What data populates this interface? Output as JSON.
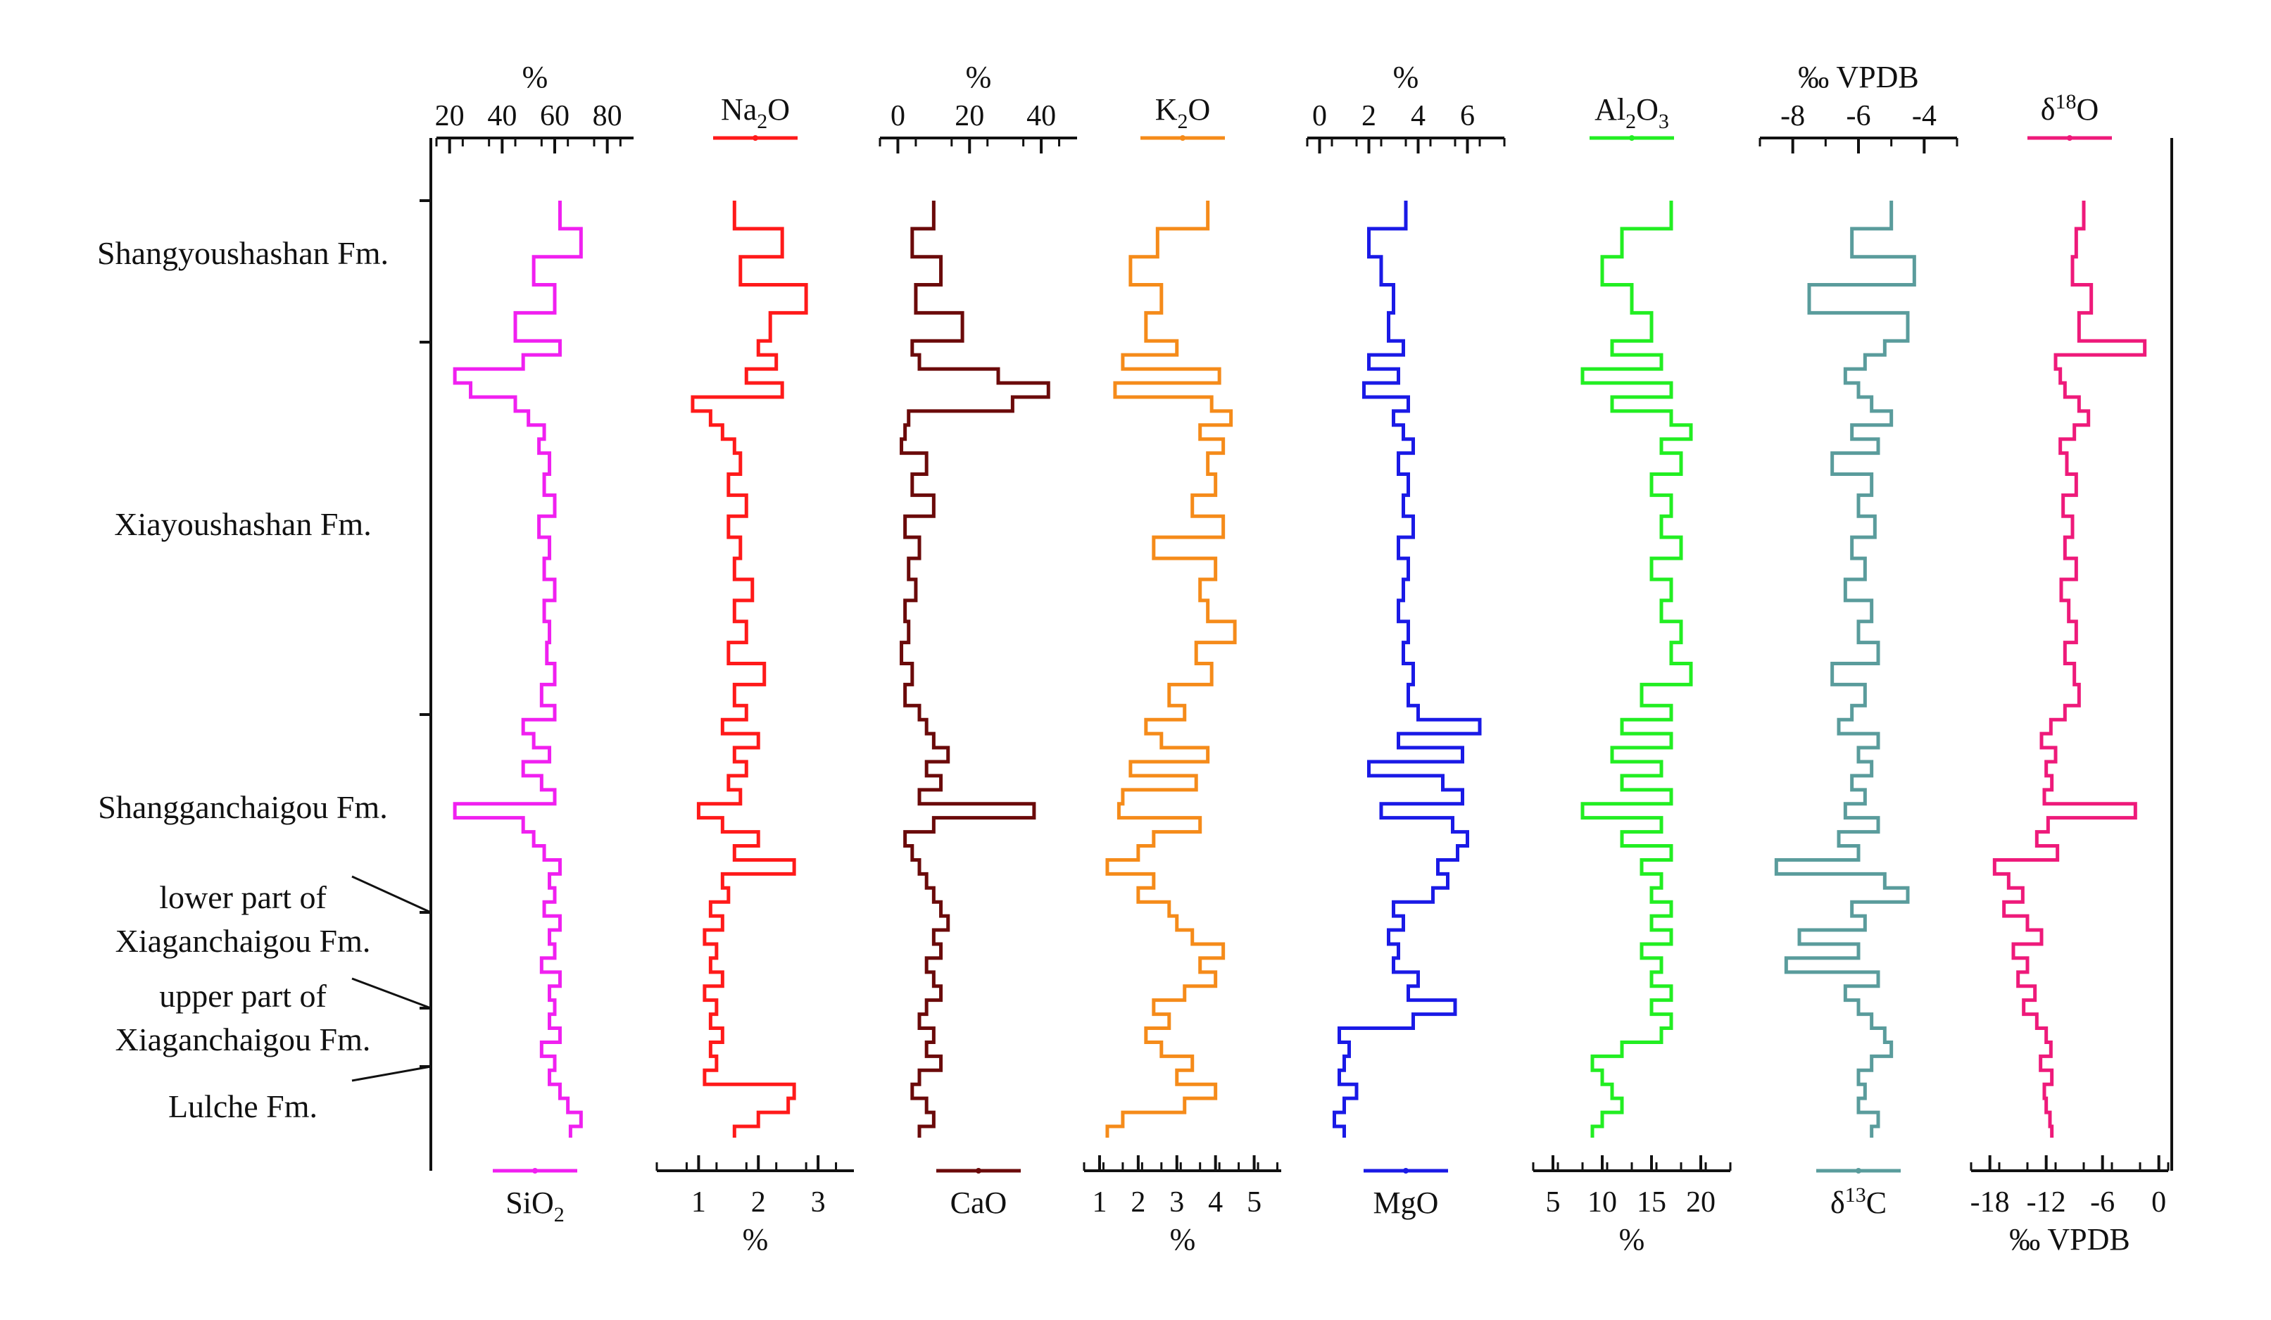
{
  "chart_data": {
    "type": "line",
    "title": "",
    "description_axis": "vertical stratigraphic profile, shared depth axis",
    "formations": [
      {
        "label": "Shangyoushashan Fm.",
        "top": 0,
        "bottom": 100
      },
      {
        "label": "Xiayoushashan Fm.",
        "top": 100,
        "bottom": 370
      },
      {
        "label": "Shangganchaigou Fm.",
        "top": 370,
        "bottom": 505
      },
      {
        "label_lines": [
          "lower part of",
          "Xiaganchaigou Fm."
        ],
        "top": 505,
        "bottom": 575
      },
      {
        "label_lines": [
          "upper part of",
          "Xiaganchaigou Fm."
        ],
        "top": 575,
        "bottom": 625
      },
      {
        "label": "Lulche Fm.",
        "top": 625,
        "bottom": 660
      }
    ],
    "y_range": [
      0,
      660
    ],
    "depth_samples": [
      0,
      20,
      40,
      60,
      80,
      100,
      110,
      120,
      130,
      140,
      150,
      160,
      170,
      180,
      195,
      210,
      225,
      240,
      255,
      270,
      285,
      300,
      315,
      330,
      345,
      360,
      370,
      380,
      390,
      400,
      410,
      420,
      430,
      440,
      450,
      460,
      470,
      480,
      490,
      500,
      510,
      520,
      530,
      540,
      550,
      560,
      570,
      580,
      590,
      600,
      610,
      620,
      630,
      640,
      650,
      660
    ],
    "series": [
      {
        "name": "SiO₂",
        "label": "SiO",
        "sub": "2",
        "sup": "",
        "color": "#f020f0",
        "axis": "top",
        "unit_top": "%",
        "unit_bottom": "",
        "ticks_top": [
          "20",
          "40",
          "60",
          "80"
        ],
        "ticks_bottom": [],
        "xlim": [
          15,
          90
        ],
        "values": [
          62,
          70,
          52,
          60,
          45,
          62,
          48,
          22,
          28,
          45,
          50,
          56,
          54,
          58,
          56,
          60,
          54,
          58,
          56,
          60,
          56,
          58,
          57,
          60,
          55,
          60,
          48,
          52,
          58,
          48,
          55,
          60,
          22,
          48,
          52,
          56,
          62,
          58,
          60,
          56,
          62,
          58,
          60,
          55,
          62,
          58,
          60,
          58,
          62,
          55,
          60,
          58,
          62,
          65,
          70,
          66
        ]
      },
      {
        "name": "Na₂O",
        "label": "Na",
        "sub": "2",
        "sup": "",
        "color": "#ff1a1a",
        "axis": "bottom",
        "unit_top": "",
        "unit_bottom": "%",
        "ticks_top": [],
        "ticks_bottom": [
          "1",
          "2",
          "3"
        ],
        "xlim": [
          0.3,
          3.6
        ],
        "values": [
          1.6,
          2.4,
          1.7,
          2.8,
          2.2,
          2.0,
          2.3,
          1.8,
          2.4,
          0.9,
          1.2,
          1.4,
          1.6,
          1.7,
          1.5,
          1.8,
          1.5,
          1.7,
          1.6,
          1.9,
          1.6,
          1.8,
          1.5,
          2.1,
          1.6,
          1.8,
          1.4,
          2.0,
          1.6,
          1.8,
          1.5,
          1.7,
          1.0,
          1.4,
          2.0,
          1.6,
          2.6,
          1.4,
          1.5,
          1.2,
          1.4,
          1.1,
          1.3,
          1.2,
          1.4,
          1.1,
          1.3,
          1.2,
          1.4,
          1.2,
          1.3,
          1.1,
          2.6,
          2.5,
          2.0,
          1.6
        ]
      },
      {
        "name": "CaO",
        "label": "CaO",
        "sub": "",
        "sup": "",
        "color": "#6b0a0a",
        "axis": "bottom",
        "unit_top": "%",
        "unit_bottom": "",
        "ticks_top": [
          "0",
          "20",
          "40"
        ],
        "ticks_bottom": [],
        "xlim": [
          -5,
          50
        ],
        "values": [
          10,
          4,
          12,
          5,
          18,
          4,
          6,
          28,
          42,
          32,
          3,
          2,
          1,
          8,
          4,
          10,
          2,
          6,
          3,
          5,
          2,
          3,
          1,
          4,
          2,
          6,
          8,
          10,
          14,
          8,
          12,
          6,
          38,
          10,
          2,
          4,
          6,
          8,
          10,
          12,
          14,
          10,
          12,
          8,
          10,
          12,
          8,
          6,
          10,
          8,
          12,
          6,
          4,
          8,
          10,
          6
        ]
      },
      {
        "name": "K₂O",
        "label": "K",
        "sub": "2",
        "sup": "",
        "color": "#f58b1a",
        "axis": "bottom",
        "unit_top": "",
        "unit_bottom": "%",
        "ticks_top": [],
        "ticks_bottom": [
          "1",
          "2",
          "3",
          "4",
          "5"
        ],
        "xlim": [
          0.6,
          5.7
        ],
        "values": [
          3.8,
          2.5,
          1.8,
          2.6,
          2.2,
          3.0,
          1.6,
          4.1,
          1.4,
          3.9,
          4.4,
          3.6,
          4.2,
          3.8,
          4.0,
          3.4,
          4.2,
          2.4,
          4.0,
          3.6,
          3.8,
          4.5,
          3.5,
          3.9,
          2.8,
          3.2,
          2.2,
          2.6,
          3.8,
          1.8,
          3.5,
          1.6,
          1.5,
          3.6,
          2.4,
          2.0,
          1.2,
          2.4,
          2.0,
          2.8,
          3.0,
          3.4,
          4.2,
          3.6,
          4.0,
          3.2,
          2.4,
          2.8,
          2.2,
          2.6,
          3.4,
          3.0,
          4.0,
          3.2,
          1.6,
          1.2
        ]
      },
      {
        "name": "MgO",
        "label": "MgO",
        "sub": "",
        "sup": "",
        "color": "#1a1ae6",
        "axis": "bottom",
        "unit_top": "%",
        "unit_bottom": "",
        "ticks_top": [
          "0",
          "2",
          "4",
          "6"
        ],
        "ticks_bottom": [],
        "xlim": [
          -0.5,
          7.5
        ],
        "values": [
          3.5,
          2.0,
          2.5,
          3.0,
          2.8,
          3.4,
          2.0,
          3.2,
          1.8,
          3.6,
          3.0,
          3.4,
          3.8,
          3.2,
          3.6,
          3.4,
          3.8,
          3.2,
          3.6,
          3.4,
          3.2,
          3.6,
          3.4,
          3.8,
          3.6,
          4.0,
          6.5,
          3.2,
          5.8,
          2.0,
          5.0,
          5.8,
          2.5,
          5.4,
          6.0,
          5.6,
          4.8,
          5.2,
          4.6,
          3.0,
          3.4,
          2.8,
          3.2,
          3.0,
          4.0,
          3.6,
          5.5,
          3.8,
          0.8,
          1.2,
          1.0,
          0.8,
          1.5,
          1.0,
          0.6,
          1.0
        ]
      },
      {
        "name": "Al₂O₃",
        "label": "Al",
        "sub": "2",
        "sup": "",
        "color": "#22ee22",
        "axis": "bottom",
        "unit_top": "",
        "unit_bottom": "%",
        "ticks_top": [],
        "ticks_bottom": [
          "5",
          "10",
          "15",
          "20"
        ],
        "xlim": [
          3,
          23
        ],
        "values": [
          17,
          12,
          10,
          13,
          15,
          11,
          16,
          8,
          17,
          11,
          17,
          19,
          16,
          18,
          15,
          17,
          16,
          18,
          15,
          17,
          16,
          18,
          17,
          19,
          14,
          17,
          12,
          17,
          11,
          16,
          12,
          17,
          8,
          16,
          12,
          17,
          14,
          16,
          15,
          17,
          15,
          17,
          14,
          16,
          15,
          17,
          15,
          17,
          16,
          12,
          9,
          10,
          11,
          12,
          10,
          9
        ]
      },
      {
        "name": "δ13C",
        "label": "δ",
        "sub": "",
        "sup": "13",
        "label_tail": "C",
        "color": "#5a9c9c",
        "axis": "top",
        "unit_top": "‰ VPDB",
        "unit_bottom": "",
        "ticks_top": [
          "-8",
          "-6",
          "-4"
        ],
        "ticks_bottom": [],
        "xlim": [
          -9,
          -3
        ],
        "values": [
          -5,
          -6.2,
          -4.3,
          -7.5,
          -4.5,
          -5.2,
          -5.8,
          -6.4,
          -6.0,
          -5.6,
          -5.0,
          -6.2,
          -5.4,
          -6.8,
          -5.6,
          -6.0,
          -5.5,
          -6.2,
          -5.8,
          -6.4,
          -5.6,
          -6.0,
          -5.4,
          -6.8,
          -5.8,
          -6.2,
          -6.6,
          -5.4,
          -6.0,
          -5.6,
          -6.2,
          -5.8,
          -6.4,
          -5.4,
          -6.6,
          -6.0,
          -8.5,
          -5.2,
          -4.5,
          -6.2,
          -5.8,
          -7.8,
          -6.0,
          -8.2,
          -5.4,
          -6.4,
          -6.0,
          -5.6,
          -5.2,
          -5.0,
          -5.6,
          -6.0,
          -5.8,
          -6.0,
          -5.4,
          -5.6
        ]
      },
      {
        "name": "δ18O",
        "label": "δ",
        "sub": "",
        "sup": "18",
        "label_tail": "O",
        "color": "#ee1a7a",
        "axis": "bottom",
        "unit_top": "",
        "unit_bottom": "‰ VPDB",
        "ticks_top": [],
        "ticks_bottom": [
          "-18",
          "-12",
          "-6",
          "0"
        ],
        "xlim": [
          -20,
          1
        ],
        "values": [
          -8,
          -8.8,
          -9.2,
          -7.2,
          -8.5,
          -1.5,
          -11,
          -10.5,
          -10.0,
          -8.5,
          -7.5,
          -9.0,
          -10.5,
          -9.8,
          -8.8,
          -10.2,
          -9.2,
          -10.0,
          -8.8,
          -10.4,
          -9.6,
          -8.8,
          -10.0,
          -9.0,
          -8.5,
          -10.0,
          -11.5,
          -12.5,
          -11.0,
          -12.0,
          -11.4,
          -12.2,
          -2.5,
          -11.8,
          -13.0,
          -10.8,
          -17.5,
          -16.0,
          -14.5,
          -16.5,
          -14.0,
          -12.5,
          -15.5,
          -14.0,
          -15.0,
          -13.2,
          -14.4,
          -13.0,
          -12.0,
          -11.5,
          -12.6,
          -11.4,
          -12.2,
          -12.0,
          -11.6,
          -11.4
        ]
      }
    ]
  }
}
